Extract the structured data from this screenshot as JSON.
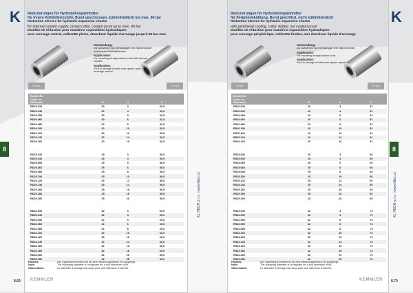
{
  "colors": {
    "brand": "#1c3f6e",
    "tab": "#2d5a2b",
    "header_bar": "#a3a4a6"
  },
  "logo_letter": "K",
  "chapter": "8",
  "company_vertical": "KL-TECH s.r.o. | www.kltec.cz",
  "brand_name": "KEMMLER",
  "table_header": {
    "code": [
      "Bestell-Nr.",
      "Order no.",
      "Référence"
    ],
    "D": "D",
    "d": "d",
    "L": "L"
  },
  "left": {
    "page": "8.69",
    "title_de_1": "Reduzierungen für Hydrodehnspannfutter",
    "title_de_2": "für innere Kühlmittelzufuhr, Bund geschlossen, kühlmitteldicht bis max. 80 bar",
    "title_en_1": "Reduction sleeves for hydraulic expansion chucks",
    "title_en_2": "for internal coolant supply, closed collar, coolant proof up to max. 80 bar",
    "title_fr_1": "Douilles de réduction pour mandrins expansibles hydrauliques",
    "title_fr_2": "avec arrosage central, collerette pleine, étancheur liquide d'arrosage jusqu'à 80 bar max.",
    "usage": [
      {
        "h": "Verwendung:",
        "t": "Zur Aufnahme von Werkzeugen mit Zylinderschaft und innerer Kühlmittelzufuhr."
      },
      {
        "h": "Application:",
        "t": "For mounting straight-shank tools with internal coolant."
      },
      {
        "h": "Application:",
        "t": "Pour le serrage d'outils avec queue cylindrique et arrosage central."
      }
    ],
    "btn_left": "Yx.xxx",
    "btn_right": "Yx.xxx",
    "rows": [
      [
        "RD20.030",
        "20",
        "3",
        "52,5"
      ],
      [
        "RD20.040",
        "20",
        "4",
        "52,5"
      ],
      [
        "RD20.050",
        "20",
        "5",
        "52,5"
      ],
      [
        "RD20.060",
        "20",
        "6",
        "52,5"
      ],
      [
        "RD20.080",
        "20",
        "8",
        "52,5"
      ],
      [
        "RD20.100",
        "20",
        "10",
        "52,5"
      ],
      [
        "RD20.120",
        "20",
        "12",
        "52,5"
      ],
      [
        "RD20.140",
        "20",
        "14",
        "52,5"
      ],
      [
        "RD20.160",
        "20",
        "16",
        "52,5"
      ],
      null,
      [
        "RD25.030",
        "25",
        "3",
        "56,5"
      ],
      [
        "RD25.040",
        "25",
        "4",
        "56,5"
      ],
      [
        "RD25.050",
        "25",
        "5",
        "56,5"
      ],
      [
        "RD25.060",
        "25",
        "6",
        "56,5"
      ],
      [
        "RD25.080",
        "25",
        "8",
        "56,5"
      ],
      [
        "RD25.100",
        "25",
        "10",
        "56,5"
      ],
      [
        "RD25.120",
        "25",
        "12",
        "56,5"
      ],
      [
        "RD25.140",
        "25",
        "14",
        "56,5"
      ],
      [
        "RD25.160",
        "25",
        "16",
        "56,5"
      ],
      [
        "RD25.180",
        "25",
        "18",
        "56,5"
      ],
      [
        "RD25.200",
        "25",
        "20",
        "56,5"
      ],
      null,
      [
        "RD32.030",
        "32",
        "3",
        "60,0"
      ],
      [
        "RD32.040",
        "32",
        "4",
        "60,0"
      ],
      [
        "RD32.050",
        "32",
        "5",
        "60,0"
      ],
      [
        "RD32.060",
        "32",
        "6",
        "60,0"
      ],
      [
        "RD32.080",
        "32",
        "8",
        "60,0"
      ],
      [
        "RD32.100",
        "32",
        "10",
        "60,0"
      ],
      [
        "RD32.120",
        "32",
        "12",
        "60,0"
      ],
      [
        "RD32.140",
        "32",
        "14",
        "60,0"
      ],
      [
        "RD32.160",
        "32",
        "16",
        "60,0"
      ],
      [
        "RD32.180",
        "32",
        "18",
        "60,0"
      ],
      [
        "RD32.200",
        "32",
        "20",
        "60,0"
      ],
      [
        "RD32.250",
        "32",
        "25",
        "60,0"
      ]
    ]
  },
  "right": {
    "page": "8.70",
    "title_de_1": "Reduzierungen für Hydrodehnspannfutter",
    "title_de_2": "für Peripheriekühlung, Bund geschlitzt, nicht kühlmitteldicht",
    "title_en_1": "Reduction sleeves for hydraulic expansion chucks",
    "title_en_2": "with peripheral cooling, collar slotted, not coolant proof",
    "title_fr_1": "Douilles de réduction pour mandrins expansibles hydrauliques",
    "title_fr_2": "pour arrosage périphérique, collerette fendue, non étancheur liquide d'arrosage",
    "usage": [
      {
        "h": "Verwendung:",
        "t": "Zur Aufnahme von Werkzeugen mit Zylinderschaft."
      },
      {
        "h": "Application:",
        "t": "For mounting straight-shank tools."
      },
      {
        "h": "Application:",
        "t": "Pour le serrage d'outils avec queue cylindrique."
      }
    ],
    "btn_left": "Yx.xxx",
    "btn_right": "Yx.xxx",
    "rows": [
      [
        "RS20.030",
        "20",
        "3",
        "51"
      ],
      [
        "RS20.040",
        "20",
        "4",
        "51"
      ],
      [
        "RS20.050",
        "20",
        "5",
        "51"
      ],
      [
        "RS20.060",
        "20",
        "6",
        "51"
      ],
      [
        "RS20.080",
        "20",
        "8",
        "51"
      ],
      [
        "RS20.100",
        "20",
        "10",
        "51"
      ],
      [
        "RS20.120",
        "20",
        "12",
        "51"
      ],
      [
        "RS20.140",
        "20",
        "14",
        "51"
      ],
      [
        "RS20.160",
        "20",
        "16",
        "51"
      ],
      null,
      [
        "RS25.030",
        "25",
        "3",
        "60"
      ],
      [
        "RS25.040",
        "25",
        "4",
        "60"
      ],
      [
        "RS25.050",
        "25",
        "5",
        "60"
      ],
      [
        "RS25.060",
        "25",
        "6",
        "60"
      ],
      [
        "RS25.080",
        "25",
        "8",
        "60"
      ],
      [
        "RS25.100",
        "25",
        "10",
        "60"
      ],
      [
        "RS25.120",
        "25",
        "12",
        "60"
      ],
      [
        "RS25.140",
        "25",
        "14",
        "60"
      ],
      [
        "RS25.160",
        "25",
        "16",
        "60"
      ],
      [
        "RS25.180",
        "25",
        "18",
        "60"
      ],
      [
        "RS25.200",
        "25",
        "20",
        "60"
      ],
      null,
      [
        "RS32.030",
        "32",
        "3",
        "73"
      ],
      [
        "RS32.040",
        "32",
        "4",
        "73"
      ],
      [
        "RS32.050",
        "32",
        "5",
        "73"
      ],
      [
        "RS32.060",
        "32",
        "6",
        "73"
      ],
      [
        "RS32.080",
        "32",
        "8",
        "73"
      ],
      [
        "RS32.100",
        "32",
        "10",
        "73"
      ],
      [
        "RS32.120",
        "32",
        "12",
        "73"
      ],
      [
        "RS32.140",
        "32",
        "14",
        "73"
      ],
      [
        "RS32.160",
        "32",
        "16",
        "73"
      ],
      [
        "RS32.180",
        "32",
        "18",
        "73"
      ],
      [
        "RS32.200",
        "32",
        "20",
        "73"
      ],
      [
        "RS32.250",
        "32",
        "25",
        "73"
      ]
    ]
  },
  "notes": [
    {
      "label": "Hinweis:",
      "text": "Der Spanndurchmesser ist für eine Werkzeugtoleranz h6 ausgelegt."
    },
    {
      "label": "Note:",
      "text": "The clamping diameter is configured for a tool tolerance of h6."
    },
    {
      "label": "Observation:",
      "text": "Le diamètre d'serrage est conçu pour une tolérance d'outil h6."
    }
  ]
}
